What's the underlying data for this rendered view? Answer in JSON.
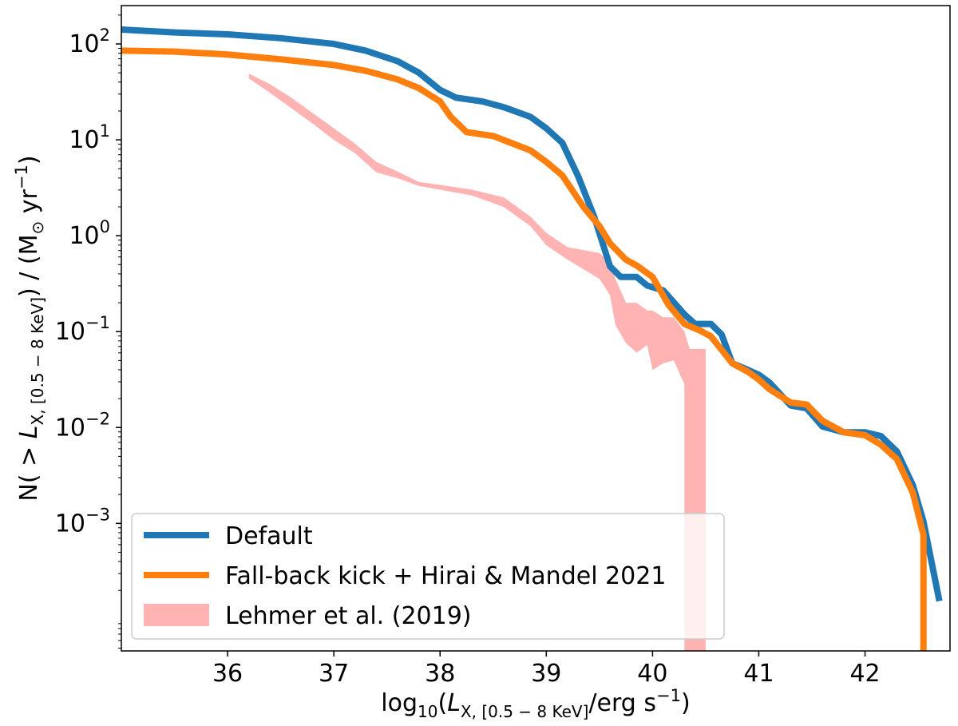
{
  "chart_data": {
    "type": "line",
    "title": "",
    "xlabel": {
      "prefix": "log",
      "prefix_sub": "10",
      "open": "(",
      "var": "L",
      "var_sub": "X, [0.5 − 8 KeV]",
      "unit": "/erg s",
      "unit_sup": "−1",
      "close": ")"
    },
    "ylabel": {
      "text1": "N( > ",
      "var": "L",
      "var_sub": "X, [0.5 − 8 KeV]",
      "text2": ") / (M",
      "sun_sub": "⊙",
      "text3": " yr",
      "text3_sup": "−1",
      "text4": ")"
    },
    "xlim": [
      35.0,
      42.8
    ],
    "ylim_log10": [
      -4.33,
      2.4
    ],
    "yscale": "log",
    "xticks": [
      36,
      37,
      38,
      39,
      40,
      41,
      42
    ],
    "xtick_labels": [
      "36",
      "37",
      "38",
      "39",
      "40",
      "41",
      "42"
    ],
    "yticks": [
      {
        "value": 2,
        "base": "10",
        "exp": "2"
      },
      {
        "value": 1,
        "base": "10",
        "exp": "1"
      },
      {
        "value": 0,
        "base": "10",
        "exp": "0"
      },
      {
        "value": -1,
        "base": "10",
        "exp": "−1"
      },
      {
        "value": -2,
        "base": "10",
        "exp": "−2"
      },
      {
        "value": -3,
        "base": "10",
        "exp": "−3"
      }
    ],
    "legend_position": "lower-left",
    "series": [
      {
        "name": "Default",
        "color": "#1f77b4",
        "kind": "line",
        "points": [
          [
            35.0,
            2.15
          ],
          [
            35.5,
            2.12
          ],
          [
            36.0,
            2.1
          ],
          [
            36.5,
            2.06
          ],
          [
            37.0,
            2.0
          ],
          [
            37.3,
            1.93
          ],
          [
            37.6,
            1.82
          ],
          [
            37.8,
            1.7
          ],
          [
            38.0,
            1.52
          ],
          [
            38.15,
            1.44
          ],
          [
            38.4,
            1.4
          ],
          [
            38.6,
            1.34
          ],
          [
            38.85,
            1.24
          ],
          [
            39.0,
            1.12
          ],
          [
            39.15,
            0.97
          ],
          [
            39.3,
            0.62
          ],
          [
            39.45,
            0.2
          ],
          [
            39.6,
            -0.32
          ],
          [
            39.7,
            -0.43
          ],
          [
            39.85,
            -0.43
          ],
          [
            39.95,
            -0.52
          ],
          [
            40.1,
            -0.57
          ],
          [
            40.3,
            -0.82
          ],
          [
            40.4,
            -0.92
          ],
          [
            40.55,
            -0.92
          ],
          [
            40.65,
            -1.03
          ],
          [
            40.75,
            -1.33
          ],
          [
            40.9,
            -1.4
          ],
          [
            41.0,
            -1.45
          ],
          [
            41.1,
            -1.53
          ],
          [
            41.3,
            -1.77
          ],
          [
            41.45,
            -1.8
          ],
          [
            41.6,
            -1.99
          ],
          [
            41.8,
            -2.05
          ],
          [
            42.0,
            -2.05
          ],
          [
            42.15,
            -2.09
          ],
          [
            42.3,
            -2.25
          ],
          [
            42.45,
            -2.6
          ],
          [
            42.55,
            -2.98
          ],
          [
            42.7,
            -3.81
          ]
        ]
      },
      {
        "name": "Fall-back kick + Hirai & Mandel 2021",
        "color": "#ff7f0e",
        "kind": "line",
        "points": [
          [
            35.0,
            1.93
          ],
          [
            35.5,
            1.92
          ],
          [
            36.0,
            1.89
          ],
          [
            36.5,
            1.84
          ],
          [
            37.0,
            1.78
          ],
          [
            37.3,
            1.72
          ],
          [
            37.6,
            1.63
          ],
          [
            37.8,
            1.54
          ],
          [
            38.0,
            1.4
          ],
          [
            38.1,
            1.24
          ],
          [
            38.25,
            1.08
          ],
          [
            38.5,
            1.04
          ],
          [
            38.85,
            0.89
          ],
          [
            39.0,
            0.77
          ],
          [
            39.15,
            0.63
          ],
          [
            39.35,
            0.3
          ],
          [
            39.5,
            0.1
          ],
          [
            39.6,
            -0.08
          ],
          [
            39.75,
            -0.25
          ],
          [
            39.85,
            -0.31
          ],
          [
            40.0,
            -0.43
          ],
          [
            40.15,
            -0.72
          ],
          [
            40.3,
            -0.92
          ],
          [
            40.45,
            -0.99
          ],
          [
            40.55,
            -1.05
          ],
          [
            40.75,
            -1.33
          ],
          [
            40.9,
            -1.42
          ],
          [
            41.0,
            -1.5
          ],
          [
            41.1,
            -1.6
          ],
          [
            41.3,
            -1.74
          ],
          [
            41.45,
            -1.76
          ],
          [
            41.6,
            -1.93
          ],
          [
            41.8,
            -2.05
          ],
          [
            42.0,
            -2.08
          ],
          [
            42.15,
            -2.18
          ],
          [
            42.3,
            -2.33
          ],
          [
            42.45,
            -2.68
          ],
          [
            42.55,
            -3.12
          ],
          [
            42.55,
            -4.4
          ]
        ]
      },
      {
        "name": "Lehmer et al. (2019)",
        "color": "#ffb3b3",
        "kind": "band",
        "lower": [
          [
            36.2,
            1.64
          ],
          [
            36.4,
            1.49
          ],
          [
            36.6,
            1.33
          ],
          [
            36.8,
            1.17
          ],
          [
            37.0,
            1.0
          ],
          [
            37.2,
            0.86
          ],
          [
            37.4,
            0.66
          ],
          [
            37.6,
            0.6
          ],
          [
            37.8,
            0.52
          ],
          [
            38.0,
            0.48
          ],
          [
            38.3,
            0.42
          ],
          [
            38.6,
            0.3
          ],
          [
            38.85,
            0.1
          ],
          [
            39.0,
            -0.1
          ],
          [
            39.2,
            -0.25
          ],
          [
            39.5,
            -0.45
          ],
          [
            39.6,
            -0.62
          ],
          [
            39.65,
            -0.93
          ],
          [
            39.75,
            -1.12
          ],
          [
            39.85,
            -1.22
          ],
          [
            39.95,
            -1.14
          ],
          [
            40.0,
            -1.4
          ],
          [
            40.1,
            -1.33
          ],
          [
            40.2,
            -1.3
          ],
          [
            40.3,
            -1.55
          ],
          [
            40.3,
            -4.4
          ]
        ],
        "upper": [
          [
            36.2,
            1.69
          ],
          [
            36.4,
            1.58
          ],
          [
            36.6,
            1.44
          ],
          [
            36.8,
            1.28
          ],
          [
            37.0,
            1.12
          ],
          [
            37.2,
            0.96
          ],
          [
            37.4,
            0.77
          ],
          [
            37.6,
            0.67
          ],
          [
            37.8,
            0.56
          ],
          [
            38.0,
            0.53
          ],
          [
            38.3,
            0.48
          ],
          [
            38.6,
            0.4
          ],
          [
            38.85,
            0.2
          ],
          [
            39.0,
            0.03
          ],
          [
            39.2,
            -0.12
          ],
          [
            39.5,
            -0.18
          ],
          [
            39.6,
            -0.28
          ],
          [
            39.65,
            -0.45
          ],
          [
            39.75,
            -0.7
          ],
          [
            39.85,
            -0.7
          ],
          [
            39.95,
            -0.78
          ],
          [
            40.0,
            -0.78
          ],
          [
            40.1,
            -0.85
          ],
          [
            40.2,
            -0.85
          ],
          [
            40.3,
            -1.0
          ],
          [
            40.35,
            -1.18
          ],
          [
            40.5,
            -1.18
          ],
          [
            40.5,
            -4.4
          ]
        ]
      }
    ]
  }
}
